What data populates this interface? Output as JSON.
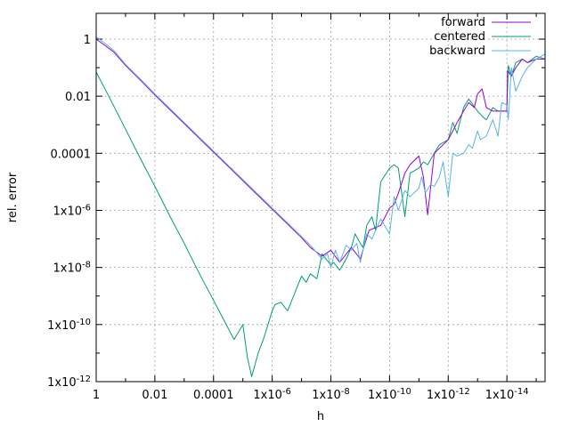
{
  "chart_data": {
    "type": "line",
    "title": "",
    "xlabel": "h",
    "ylabel": "rel. error",
    "xscale": "log",
    "yscale": "log",
    "x_reversed": true,
    "xlim": [
      1,
      5e-16
    ],
    "ylim": [
      1e-12,
      8
    ],
    "grid": true,
    "legend_position": "top-right",
    "x_ticks": [
      {
        "value": 1,
        "label": "1"
      },
      {
        "value": 0.01,
        "label": "0.01"
      },
      {
        "value": 0.0001,
        "label": "0.0001"
      },
      {
        "value": 1e-06,
        "label": "1x10-6"
      },
      {
        "value": 1e-08,
        "label": "1x10-8"
      },
      {
        "value": 1e-10,
        "label": "1x10-10"
      },
      {
        "value": 1e-12,
        "label": "1x10-12"
      },
      {
        "value": 1e-14,
        "label": "1x10-14"
      }
    ],
    "y_ticks": [
      {
        "value": 1,
        "label": "1"
      },
      {
        "value": 0.01,
        "label": "0.01"
      },
      {
        "value": 0.0001,
        "label": "0.0001"
      },
      {
        "value": 1e-06,
        "label": "1x10-6"
      },
      {
        "value": 1e-08,
        "label": "1x10-8"
      },
      {
        "value": 1e-10,
        "label": "1x10-10"
      },
      {
        "value": 1e-12,
        "label": "1x10-12"
      }
    ],
    "series": [
      {
        "name": "forward",
        "color": "#9400d3",
        "x": [
          1,
          0.5,
          0.25,
          0.1,
          0.03,
          0.01,
          0.003,
          0.001,
          0.0003,
          0.0001,
          3e-05,
          1e-05,
          3e-06,
          1e-06,
          3e-07,
          1e-07,
          5e-08,
          2e-08,
          1e-08,
          5e-09,
          2e-09,
          1e-09,
          5e-10,
          2e-10,
          1e-10,
          7e-11,
          5e-11,
          3e-11,
          2e-11,
          1e-11,
          7e-12,
          5e-12,
          3e-12,
          2e-12,
          1e-12,
          7e-13,
          5e-13,
          3e-13,
          2e-13,
          1.3e-13,
          1e-13,
          7e-14,
          5e-14,
          3e-14,
          2e-14,
          1e-14,
          9.5e-15,
          7e-15,
          5e-15,
          3e-15,
          2e-15,
          1e-15,
          5e-16
        ],
        "values": [
          1.0,
          0.6,
          0.35,
          0.12,
          0.035,
          0.011,
          0.0033,
          0.0011,
          0.00033,
          0.00011,
          3.3e-05,
          1.1e-05,
          3.3e-06,
          1.1e-06,
          3.3e-07,
          1.1e-07,
          5e-08,
          2.5e-08,
          4e-08,
          1.5e-08,
          5e-08,
          2e-08,
          2e-07,
          3e-07,
          1.2e-06,
          1.6e-06,
          4e-06,
          2e-05,
          4e-05,
          8e-05,
          1.5e-05,
          7e-07,
          0.0001,
          0.00015,
          0.0003,
          0.0006,
          0.0012,
          0.003,
          0.006,
          0.004,
          0.012,
          0.018,
          0.004,
          0.003,
          0.003,
          0.003,
          0.08,
          0.05,
          0.1,
          0.2,
          0.15,
          0.2,
          0.2
        ]
      },
      {
        "name": "centered",
        "color": "#009e73",
        "x": [
          1,
          0.5,
          0.25,
          0.1,
          0.03,
          0.01,
          0.003,
          0.001,
          0.0003,
          0.0001,
          2e-05,
          1e-05,
          7e-06,
          5e-06,
          3e-06,
          2e-06,
          1e-06,
          8e-07,
          5e-07,
          3e-07,
          1e-07,
          7e-08,
          5e-08,
          3e-08,
          2e-08,
          1e-08,
          8e-09,
          5e-09,
          3e-09,
          2e-09,
          1.5e-09,
          1e-09,
          8e-10,
          6e-10,
          4e-10,
          3e-10,
          2e-10,
          1e-10,
          7e-11,
          5e-11,
          3e-11,
          2e-11,
          1e-11,
          7e-12,
          5e-12,
          3e-12,
          2e-12,
          1e-12,
          7e-13,
          5e-13,
          3e-13,
          2e-13,
          1e-13,
          7e-14,
          5e-14,
          3e-14,
          2e-14,
          1e-14,
          9e-15,
          7e-15,
          5e-15,
          3e-15,
          2e-15,
          1e-15,
          5e-16
        ],
        "values": [
          0.07,
          0.018,
          0.0045,
          0.0007,
          6e-05,
          7e-06,
          6e-07,
          7e-08,
          6e-09,
          7e-10,
          3e-11,
          1e-10,
          7e-12,
          1.5e-12,
          1e-11,
          3e-11,
          3e-10,
          5e-10,
          6e-10,
          3e-10,
          5e-09,
          3e-09,
          6e-09,
          4e-09,
          3e-08,
          1.2e-08,
          1.5e-08,
          8e-09,
          2e-08,
          5e-08,
          1.5e-07,
          7e-08,
          5e-08,
          3e-07,
          6e-07,
          2e-07,
          1e-05,
          3e-05,
          4e-05,
          3e-05,
          6e-07,
          2e-05,
          3e-05,
          5e-05,
          4e-05,
          0.0001,
          0.0002,
          0.0003,
          0.0012,
          0.0005,
          0.004,
          0.008,
          0.003,
          0.002,
          0.0015,
          0.004,
          0.003,
          0.003,
          0.12,
          0.05,
          0.15,
          0.2,
          0.15,
          0.25,
          0.2
        ]
      },
      {
        "name": "backward",
        "color": "#56b4e9",
        "x": [
          1,
          0.5,
          0.25,
          0.1,
          0.03,
          0.01,
          0.003,
          0.001,
          0.0003,
          0.0001,
          3e-05,
          1e-05,
          3e-06,
          1e-06,
          3e-07,
          1e-07,
          5e-08,
          2e-08,
          1.3e-08,
          1e-08,
          7e-09,
          5e-09,
          3e-09,
          2e-09,
          1.3e-09,
          1e-09,
          6e-10,
          4e-10,
          2e-10,
          1e-10,
          7e-11,
          5e-11,
          3e-11,
          2e-11,
          1e-11,
          8e-12,
          6e-12,
          4e-12,
          3e-12,
          2e-12,
          1.5e-12,
          1e-12,
          7e-13,
          5e-13,
          3e-13,
          2e-13,
          1.5e-13,
          1e-13,
          8e-14,
          5e-14,
          3e-14,
          2e-14,
          1.5e-14,
          1e-14,
          9e-15,
          7e-15,
          5e-15,
          3e-15,
          2e-15,
          1e-15,
          5e-16
        ],
        "values": [
          1.2,
          0.7,
          0.4,
          0.13,
          0.038,
          0.012,
          0.0036,
          0.0012,
          0.00036,
          0.00012,
          3.6e-05,
          1.2e-05,
          3.6e-06,
          1.2e-06,
          3.6e-07,
          1.2e-07,
          6e-08,
          2e-08,
          3e-08,
          1e-08,
          4e-08,
          1.5e-08,
          6e-08,
          4e-08,
          7e-08,
          1.5e-08,
          1.5e-07,
          1e-07,
          5e-07,
          1.5e-07,
          3e-06,
          1e-06,
          5e-06,
          3e-06,
          6e-06,
          1.5e-05,
          4e-06,
          8e-06,
          7e-06,
          1.5e-05,
          5e-05,
          3e-06,
          0.0001,
          8e-05,
          0.0001,
          0.0002,
          0.00015,
          0.0006,
          0.0003,
          0.0004,
          0.0015,
          0.0004,
          0.006,
          0.005,
          0.0015,
          0.1,
          0.015,
          0.05,
          0.1,
          0.2,
          0.3
        ]
      }
    ]
  }
}
